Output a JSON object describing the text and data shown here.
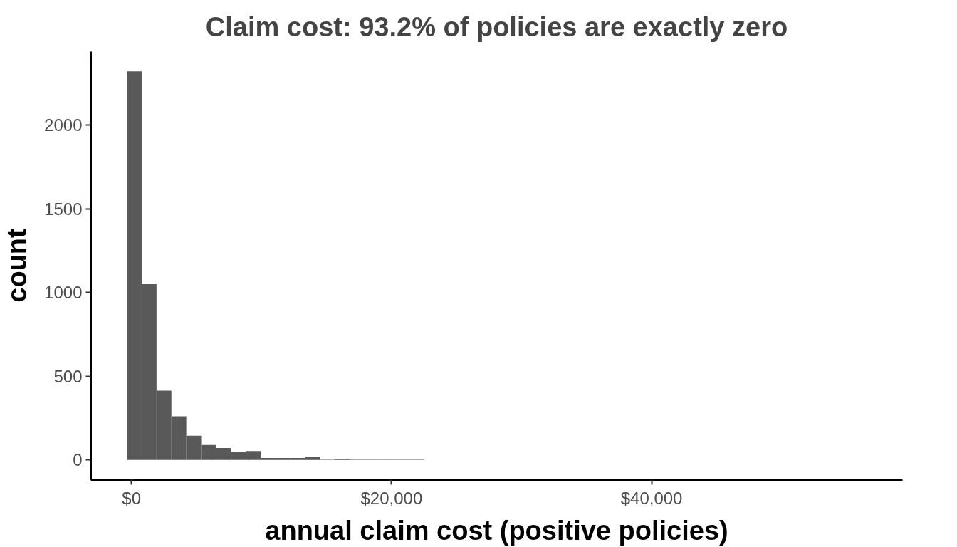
{
  "chart_data": {
    "type": "histogram",
    "title": "Claim cost: 93.2% of policies are exactly zero",
    "xlabel": "annual claim cost (positive policies)",
    "ylabel": "count",
    "bins": [
      -360,
      784,
      1928,
      3072,
      4216,
      5360,
      6504,
      7648,
      8792,
      9936,
      11080,
      12224,
      13368,
      14512,
      15656,
      16800,
      17944,
      19088,
      20232,
      21376,
      22520
    ],
    "values": [
      2322,
      1050,
      414,
      261,
      145,
      90,
      71,
      47,
      53,
      12,
      12,
      12,
      20,
      2,
      8,
      2,
      2,
      2,
      2,
      2
    ],
    "color": "#595959",
    "xlim": [
      -3130,
      59300
    ],
    "ylim": [
      -118,
      2440
    ],
    "xticks": [
      {
        "value": 0,
        "label": "$0"
      },
      {
        "value": 20000,
        "label": "$20,000"
      },
      {
        "value": 40000,
        "label": "$40,000"
      }
    ],
    "yticks": [
      0,
      500,
      1000,
      1500,
      2000
    ],
    "grid": false
  }
}
